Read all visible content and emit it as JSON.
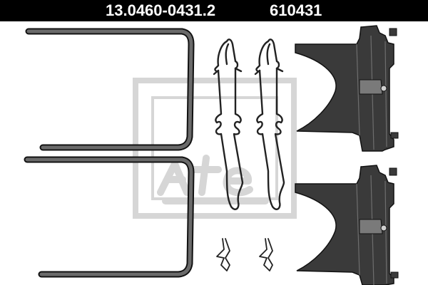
{
  "header": {
    "part_number": "13.0460-0431.2",
    "short_number": "610431"
  },
  "watermark": {
    "brand_text": "ate"
  },
  "colors": {
    "header_background": "#000000",
    "header_text": "#ffffff",
    "part_fill": "#3a3a3a",
    "part_outline": "#111111",
    "watermark": "#d6d6d6"
  },
  "parts": [
    {
      "type": "u-shaped-retaining-spring",
      "quantity": 2
    },
    {
      "type": "wire-clip-spring",
      "quantity": 2
    },
    {
      "type": "small-spring-clip",
      "quantity": 2
    },
    {
      "type": "anti-rattle-spring-plate",
      "quantity": 2
    }
  ]
}
